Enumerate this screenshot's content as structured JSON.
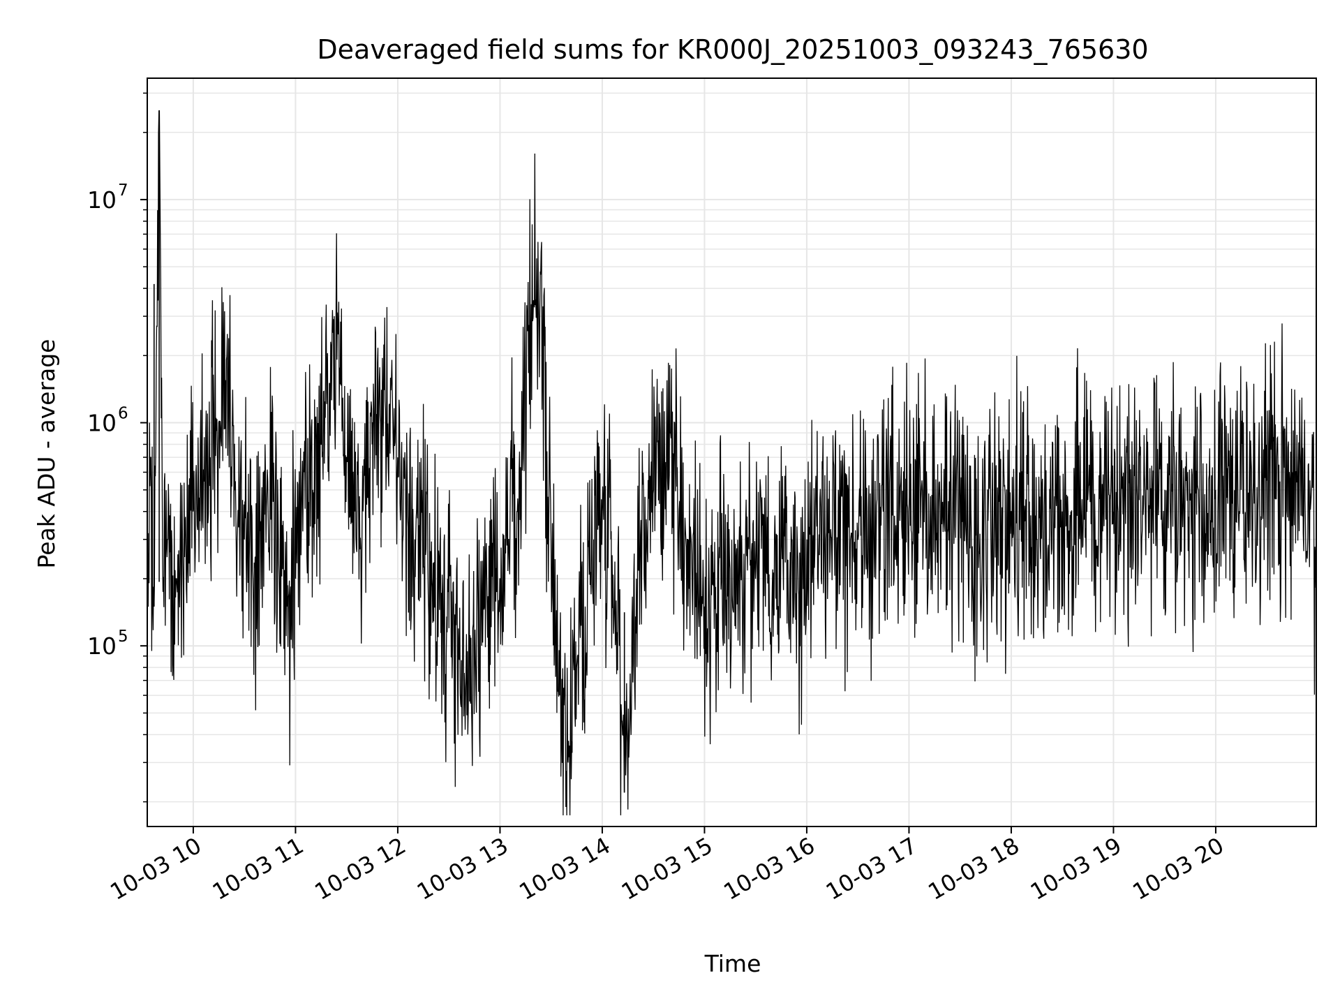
{
  "chart_data": {
    "type": "line",
    "title": "Deaveraged field sums for KR000J_20251003_093243_765630",
    "xlabel": "Time",
    "ylabel": "Peak ADU - average",
    "yscale": "log",
    "xlim": [
      "2025-10-03 09:33",
      "2025-10-03 20:59"
    ],
    "ylim": [
      15500,
      35000000
    ],
    "grid": "both",
    "line_color": "#000000",
    "x_tick_labels": [
      "10-03 10",
      "10-03 11",
      "10-03 12",
      "10-03 13",
      "10-03 14",
      "10-03 15",
      "10-03 16",
      "10-03 17",
      "10-03 18",
      "10-03 19",
      "10-03 20"
    ],
    "x_tick_times": [
      "2025-10-03 10:00",
      "2025-10-03 11:00",
      "2025-10-03 12:00",
      "2025-10-03 13:00",
      "2025-10-03 14:00",
      "2025-10-03 15:00",
      "2025-10-03 16:00",
      "2025-10-03 17:00",
      "2025-10-03 18:00",
      "2025-10-03 19:00",
      "2025-10-03 20:00"
    ],
    "y_ticks": [
      {
        "value": 100000,
        "base": "10",
        "exp": "5"
      },
      {
        "value": 1000000,
        "base": "10",
        "exp": "6"
      },
      {
        "value": 10000000,
        "base": "10",
        "exp": "7"
      }
    ],
    "series": [
      {
        "x": [
          "2025-10-03 09:33",
          "2025-10-03 09:35",
          "2025-10-03 09:37",
          "2025-10-03 09:40",
          "2025-10-03 09:42",
          "2025-10-03 09:45",
          "2025-10-03 09:50",
          "2025-10-03 09:55",
          "2025-10-03 10:00",
          "2025-10-03 10:05",
          "2025-10-03 10:10",
          "2025-10-03 10:15",
          "2025-10-03 10:20",
          "2025-10-03 10:25",
          "2025-10-03 10:30",
          "2025-10-03 10:35",
          "2025-10-03 10:40",
          "2025-10-03 10:45",
          "2025-10-03 10:50",
          "2025-10-03 10:55",
          "2025-10-03 11:00",
          "2025-10-03 11:05",
          "2025-10-03 11:10",
          "2025-10-03 11:15",
          "2025-10-03 11:20",
          "2025-10-03 11:25",
          "2025-10-03 11:30",
          "2025-10-03 11:35",
          "2025-10-03 11:40",
          "2025-10-03 11:45",
          "2025-10-03 11:50",
          "2025-10-03 11:55",
          "2025-10-03 12:00",
          "2025-10-03 12:10",
          "2025-10-03 12:20",
          "2025-10-03 12:30",
          "2025-10-03 12:40",
          "2025-10-03 12:50",
          "2025-10-03 13:00",
          "2025-10-03 13:05",
          "2025-10-03 13:10",
          "2025-10-03 13:15",
          "2025-10-03 13:20",
          "2025-10-03 13:25",
          "2025-10-03 13:30",
          "2025-10-03 13:35",
          "2025-10-03 13:40",
          "2025-10-03 13:45",
          "2025-10-03 13:50",
          "2025-10-03 13:55",
          "2025-10-03 14:00",
          "2025-10-03 14:05",
          "2025-10-03 14:10",
          "2025-10-03 14:13",
          "2025-10-03 14:20",
          "2025-10-03 14:30",
          "2025-10-03 14:40",
          "2025-10-03 14:50",
          "2025-10-03 15:00",
          "2025-10-03 15:10",
          "2025-10-03 15:20",
          "2025-10-03 15:30",
          "2025-10-03 15:40",
          "2025-10-03 15:50",
          "2025-10-03 15:55",
          "2025-10-03 16:00",
          "2025-10-03 16:15",
          "2025-10-03 16:30",
          "2025-10-03 16:45",
          "2025-10-03 17:00",
          "2025-10-03 17:15",
          "2025-10-03 17:30",
          "2025-10-03 17:45",
          "2025-10-03 18:00",
          "2025-10-03 18:15",
          "2025-10-03 18:30",
          "2025-10-03 18:45",
          "2025-10-03 19:00",
          "2025-10-03 19:15",
          "2025-10-03 19:30",
          "2025-10-03 19:45",
          "2025-10-03 20:00",
          "2025-10-03 20:15",
          "2025-10-03 20:30",
          "2025-10-03 20:45",
          "2025-10-03 20:59"
        ],
        "values": [
          300000,
          700000,
          150000,
          25000000,
          250000,
          300000,
          200000,
          250000,
          400000,
          500000,
          700000,
          1000000,
          2500000,
          400000,
          300000,
          200000,
          350000,
          500000,
          250000,
          150000,
          200000,
          600000,
          500000,
          800000,
          1500000,
          2500000,
          700000,
          400000,
          500000,
          800000,
          1000000,
          1200000,
          700000,
          300000,
          200000,
          120000,
          80000,
          150000,
          200000,
          300000,
          400000,
          1500000,
          3500000,
          2000000,
          300000,
          60000,
          30000,
          80000,
          150000,
          300000,
          400000,
          300000,
          100000,
          22000,
          200000,
          500000,
          900000,
          300000,
          150000,
          200000,
          180000,
          200000,
          220000,
          200000,
          180000,
          300000,
          350000,
          300000,
          400000,
          400000,
          450000,
          400000,
          350000,
          400000,
          300000,
          400000,
          450000,
          400000,
          450000,
          500000,
          450000,
          500000,
          500000,
          550000,
          600000,
          450000
        ]
      }
    ]
  }
}
